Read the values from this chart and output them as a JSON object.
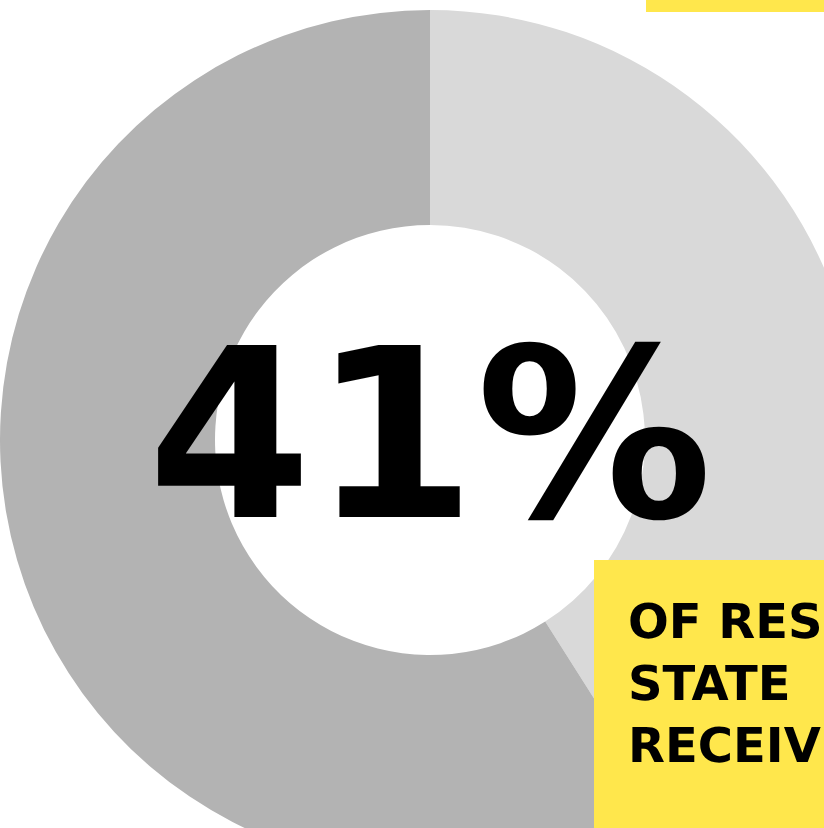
{
  "chart_data": {
    "type": "donut",
    "categories": [
      null,
      null
    ],
    "values": [
      41,
      59
    ],
    "colors": [
      "#d9d9d9",
      "#b3b3b3"
    ],
    "value_labels": [
      "41%",
      null
    ],
    "annotations": [
      "OF RES",
      "STATE",
      "RECEIV"
    ]
  }
}
